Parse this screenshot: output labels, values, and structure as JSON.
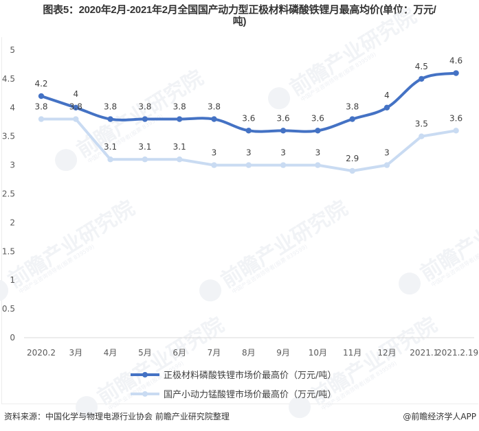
{
  "title": "图表5：2020年2月-2021年2月全国国产动力型正极材料磷酸铁锂月最高均价(单位：万元/吨)",
  "title_line1": "图表5：2020年2月-2021年2月全国国产动力型正极材料磷酸铁锂月最高均价(单位：万元/",
  "title_line2": "吨)",
  "source": "资料来源：中国化学与物理电源行业协会 前瞻产业研究院整理",
  "credit": "@前瞻经济学人APP",
  "watermark": {
    "brand": "前瞻产业研究院",
    "sub": "中国产业咨询领导者(股票 839599)"
  },
  "colors": {
    "series1": "#4472C4",
    "series2": "#C9DBF2",
    "axis": "#D9D9D9"
  },
  "chart_data": {
    "type": "line",
    "title": "图表5：2020年2月-2021年2月全国国产动力型正极材料磷酸铁锂月最高均价(单位：万元/吨)",
    "xlabel": "",
    "ylabel": "",
    "categories": [
      "2020.2",
      "3月",
      "4月",
      "5月",
      "6月",
      "7月",
      "8月",
      "9月",
      "10月",
      "11月",
      "12月",
      "2021.1",
      "2021.2.19"
    ],
    "yticks": [
      "0",
      "0.5",
      "1",
      "1.5",
      "2",
      "2.5",
      "3",
      "3.5",
      "4",
      "4.5",
      "5"
    ],
    "ylim": [
      0,
      5
    ],
    "grid": false,
    "legend_position": "bottom",
    "series": [
      {
        "name": "正极材料磷酸铁锂市场价最高价（万元/吨）",
        "values": [
          4.2,
          4.0,
          3.8,
          3.8,
          3.8,
          3.8,
          3.6,
          3.6,
          3.6,
          3.8,
          4.0,
          4.5,
          4.6
        ],
        "labels": [
          "4.2",
          "4",
          "3.8",
          "3.8",
          "3.8",
          "3.8",
          "3.6",
          "3.6",
          "3.6",
          "3.8",
          "4",
          "4.5",
          "4.6"
        ],
        "smooth": true,
        "color": "#4472C4"
      },
      {
        "name": "国产小动力锰酸锂市场价最高价（万元/吨）",
        "values": [
          3.8,
          3.8,
          3.1,
          3.1,
          3.1,
          3.0,
          3.0,
          3.0,
          3.0,
          2.9,
          3.0,
          3.5,
          3.6
        ],
        "labels": [
          "3.8",
          "3.8",
          "3.1",
          "3.1",
          "3.1",
          "3",
          "3",
          "3",
          "3",
          "2.9",
          "3",
          "3.5",
          "3.6"
        ],
        "smooth": false,
        "color": "#C9DBF2"
      }
    ]
  }
}
